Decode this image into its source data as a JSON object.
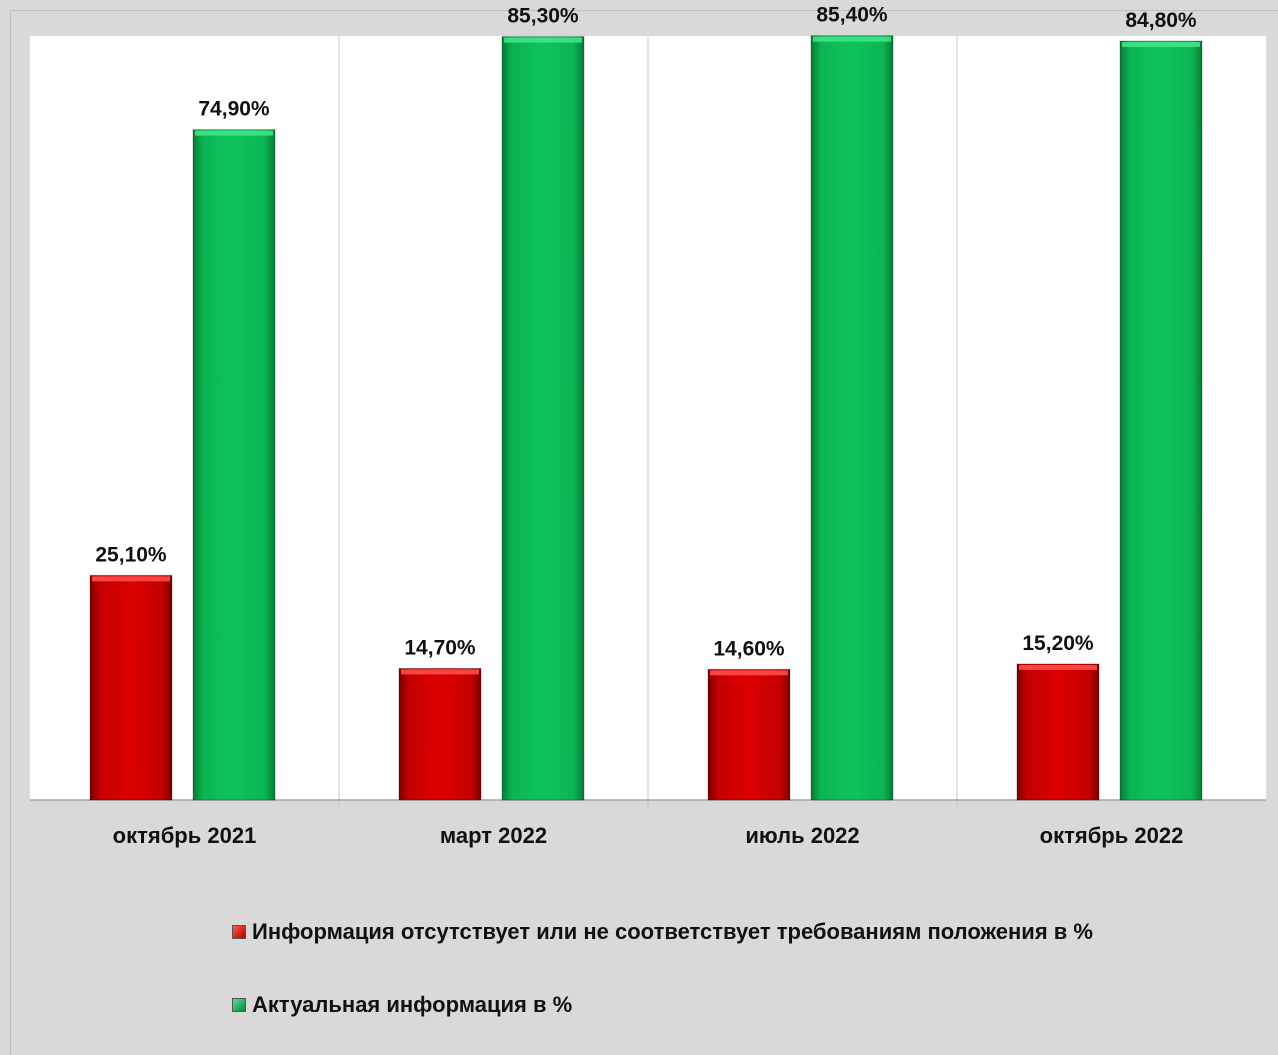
{
  "chart_data": {
    "type": "bar",
    "title": "",
    "xlabel": "",
    "ylabel": "",
    "ylim": [
      0,
      100
    ],
    "grid": false,
    "legend_position": "bottom",
    "categories": [
      "октябрь 2021",
      "март 2022",
      "июль 2022",
      "октябрь 2022"
    ],
    "series": [
      {
        "name": "Информация отсутствует или не соответствует требованиям  положения в %",
        "color": "#cc0000",
        "values": [
          25.1,
          14.7,
          14.6,
          15.2
        ],
        "labels": [
          "25,10%",
          "14,70%",
          "14,60%",
          "15,20%"
        ]
      },
      {
        "name": "Актуальная информация в %",
        "color": "#0cbd58",
        "values": [
          74.9,
          85.3,
          85.4,
          84.8
        ],
        "labels": [
          "74,90%",
          "85,30%",
          "85,40%",
          "84,80%"
        ]
      }
    ]
  }
}
